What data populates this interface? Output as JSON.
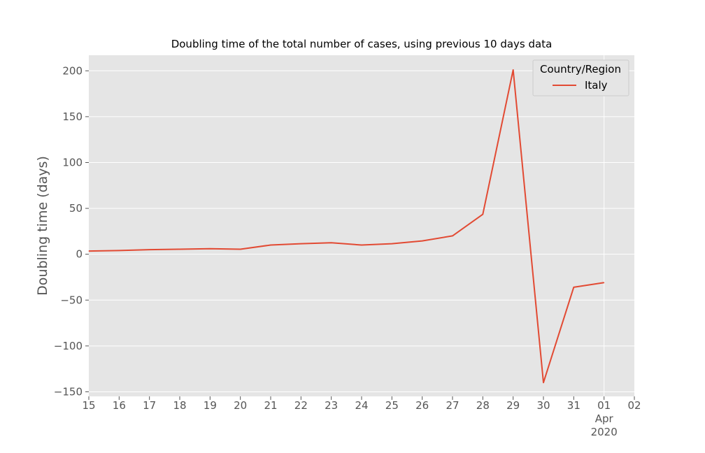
{
  "chart_data": {
    "type": "line",
    "title": "Doubling time of the total number of cases, using previous 10 days data",
    "xlabel": "",
    "ylabel": "Doubling time (days)",
    "x": [
      "2020-03-15",
      "2020-03-16",
      "2020-03-17",
      "2020-03-18",
      "2020-03-19",
      "2020-03-20",
      "2020-03-21",
      "2020-03-22",
      "2020-03-23",
      "2020-03-24",
      "2020-03-25",
      "2020-03-26",
      "2020-03-27",
      "2020-03-28",
      "2020-03-29",
      "2020-03-30",
      "2020-03-31",
      "2020-04-01"
    ],
    "series": [
      {
        "name": "Italy",
        "color": "#e24a33",
        "values": [
          3.5,
          4,
          5,
          5.5,
          6,
          5.5,
          10,
          11.5,
          12.5,
          10,
          11.5,
          14.5,
          20,
          43.5,
          201,
          -140,
          -36,
          -31
        ]
      }
    ],
    "xlim": [
      "2020-03-15",
      "2020-04-02"
    ],
    "ylim": [
      -155,
      217
    ],
    "x_ticks": [
      "15",
      "16",
      "17",
      "18",
      "19",
      "20",
      "21",
      "22",
      "23",
      "24",
      "25",
      "26",
      "27",
      "28",
      "29",
      "30",
      "31",
      "01",
      "02"
    ],
    "x_tick_secondary": {
      "at": "01",
      "lines": [
        "Apr",
        "2020"
      ]
    },
    "y_ticks": [
      200,
      150,
      100,
      50,
      0,
      -50,
      -100,
      -150
    ],
    "y_tick_labels": [
      "200",
      "150",
      "100",
      "50",
      "0",
      "−50",
      "−100",
      "−150"
    ],
    "legend": {
      "title": "Country/Region",
      "position": "top-right"
    },
    "grid": true,
    "style": {
      "background": "#e5e5e5",
      "grid_color": "#ffffff"
    }
  }
}
